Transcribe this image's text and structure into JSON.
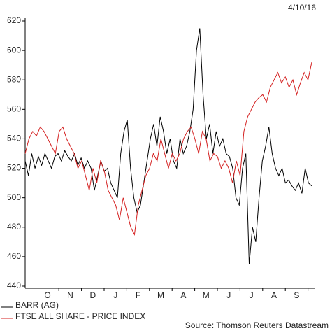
{
  "chart_data": {
    "type": "line",
    "date": "4/10/16",
    "source": "Source: Thomson Reuters Datastream",
    "x_labels": [
      "O",
      "N",
      "D",
      "J",
      "F",
      "M",
      "A",
      "M",
      "J",
      "J",
      "A",
      "S"
    ],
    "ylim": [
      440,
      620
    ],
    "yticks": [
      440,
      460,
      480,
      500,
      520,
      540,
      560,
      580,
      600,
      620
    ],
    "series": [
      {
        "name": "BARR (AG)",
        "color": "#000000",
        "values": [
          525,
          515,
          530,
          520,
          528,
          522,
          530,
          525,
          520,
          528,
          530,
          525,
          532,
          528,
          525,
          530,
          522,
          527,
          520,
          525,
          520,
          505,
          515,
          525,
          518,
          520,
          510,
          505,
          500,
          530,
          545,
          553,
          520,
          500,
          490,
          495,
          510,
          525,
          540,
          550,
          535,
          555,
          545,
          530,
          540,
          525,
          520,
          540,
          530,
          535,
          545,
          560,
          600,
          615,
          570,
          540,
          550,
          530,
          545,
          535,
          540,
          530,
          528,
          520,
          500,
          495,
          520,
          530,
          455,
          480,
          470,
          500,
          525,
          535,
          548,
          530,
          520,
          515,
          520,
          510,
          512,
          508,
          505,
          510,
          503,
          520,
          510,
          508
        ]
      },
      {
        "name": "FTSE ALL SHARE - PRICE INDEX",
        "color": "#d42020",
        "values": [
          530,
          540,
          545,
          542,
          548,
          545,
          540,
          535,
          530,
          545,
          548,
          540,
          535,
          530,
          520,
          525,
          515,
          505,
          520,
          510,
          525,
          518,
          505,
          500,
          495,
          485,
          500,
          490,
          480,
          475,
          495,
          505,
          515,
          520,
          530,
          525,
          540,
          530,
          520,
          530,
          525,
          530,
          540,
          545,
          548,
          540,
          530,
          545,
          540,
          525,
          530,
          528,
          520,
          525,
          520,
          510,
          525,
          515,
          545,
          555,
          560,
          565,
          568,
          570,
          565,
          575,
          580,
          585,
          578,
          582,
          575,
          580,
          570,
          578,
          585,
          580,
          592
        ]
      }
    ]
  }
}
